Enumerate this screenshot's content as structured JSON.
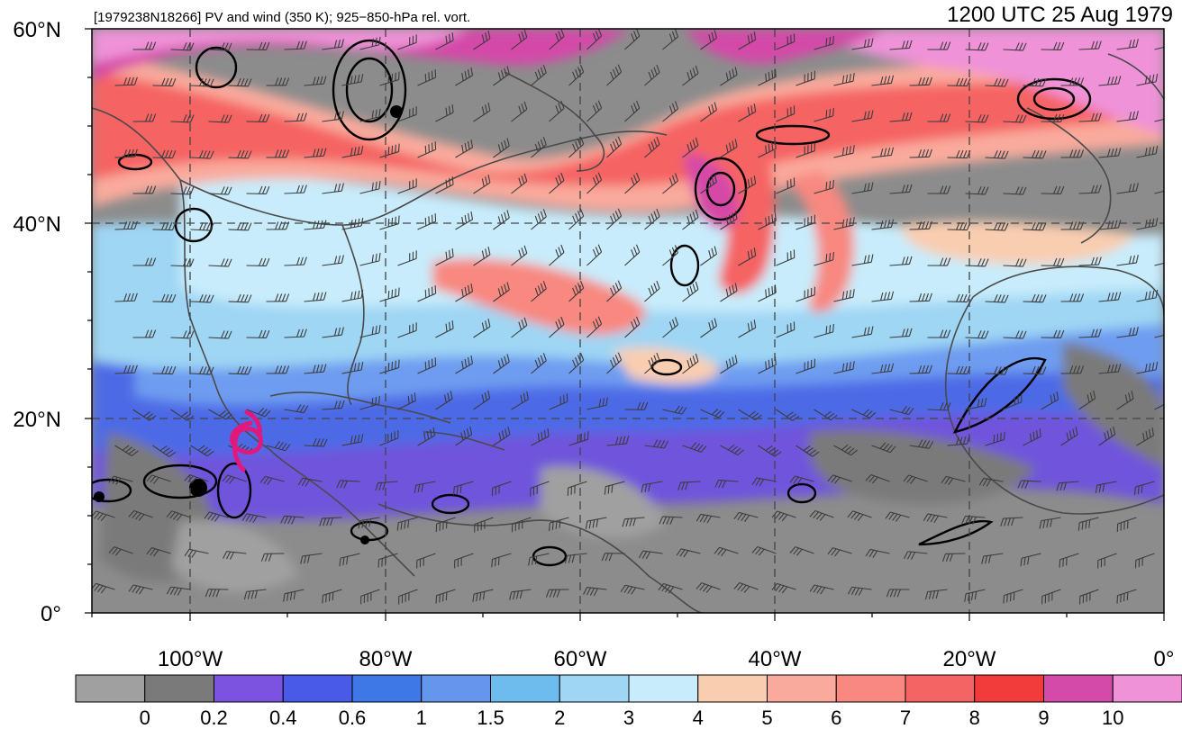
{
  "header": {
    "subtitle": "[1979238N18266] PV and wind (350 K); 925−850-hPa rel. vort.",
    "valid_time": "1200 UTC 25 Aug 1979"
  },
  "map": {
    "lat_labels": [
      "60°N",
      "40°N",
      "20°N",
      "0°"
    ],
    "lon_labels": [
      "100°W",
      "80°W",
      "60°W",
      "40°W",
      "20°W",
      "0°"
    ],
    "storm_symbol": "tropical-cyclone-icon",
    "storm_color": "#e0197d"
  },
  "colorbar": {
    "colors": [
      "#a0a0a0",
      "#7a7a7a",
      "#7c52e0",
      "#4a5ae8",
      "#3d78e6",
      "#6496ee",
      "#6ebcee",
      "#9ed6f4",
      "#c8ecfb",
      "#f9cdb0",
      "#f9aa9c",
      "#f88880",
      "#f56464",
      "#f23c3c",
      "#d44aa8",
      "#ef92d8"
    ],
    "labels": [
      "0",
      "0.2",
      "0.4",
      "0.6",
      "1",
      "1.5",
      "2",
      "3",
      "4",
      "5",
      "6",
      "7",
      "8",
      "9",
      "10"
    ]
  }
}
